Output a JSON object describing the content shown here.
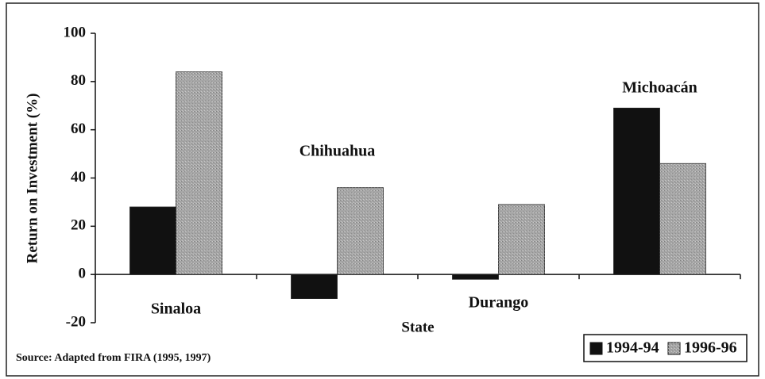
{
  "chart_data": {
    "type": "bar",
    "y_label": "Return on Investment (%)",
    "x_label": "State",
    "source": "Source: Adapted from FIRA (1995, 1997)",
    "categories": [
      "Sinaloa",
      "Chihuahua",
      "Durango",
      "Michoacán"
    ],
    "series": [
      {
        "name": "1994-94",
        "color": "#111111",
        "values": [
          28,
          -10,
          -2,
          69
        ]
      },
      {
        "name": "1996-96",
        "color": "#a6a6a6",
        "values": [
          84,
          36,
          29,
          46
        ]
      }
    ],
    "ylim": [
      -20,
      100
    ],
    "yticks": [
      -20,
      0,
      20,
      40,
      60,
      80,
      100
    ],
    "legend": "lower right"
  }
}
